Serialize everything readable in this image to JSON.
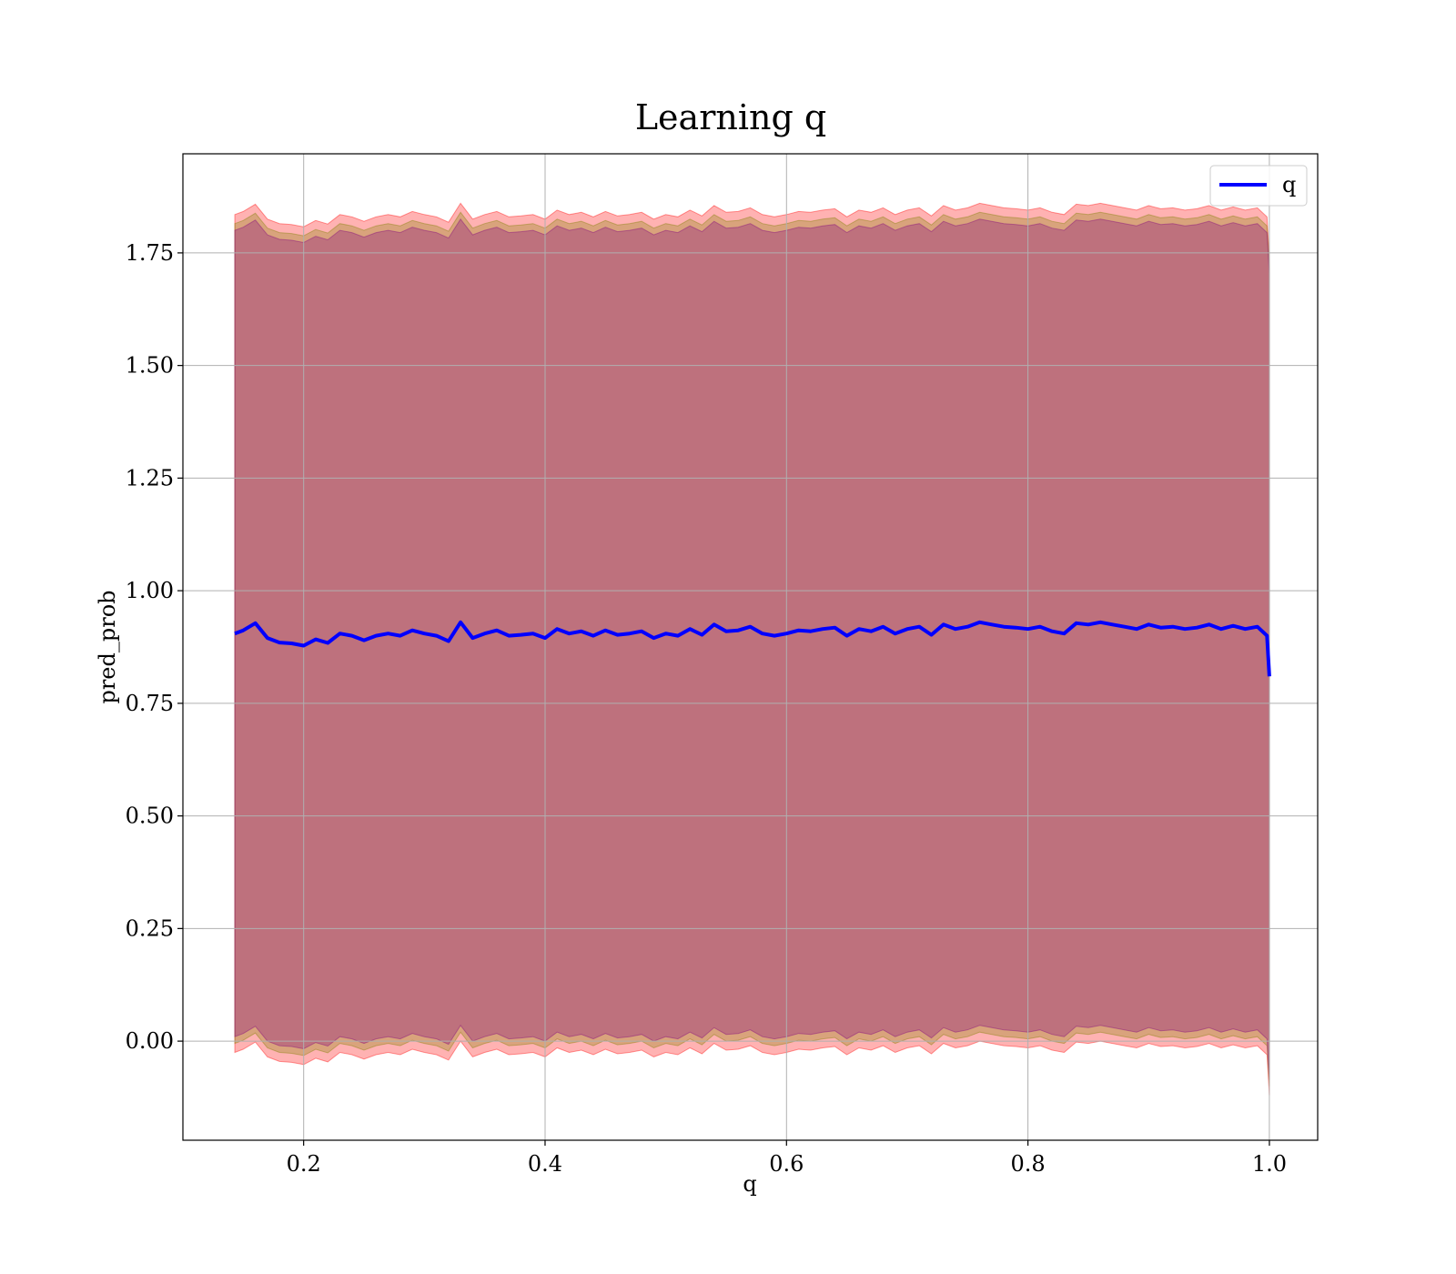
{
  "chart_data": {
    "type": "line",
    "title": "Learning q",
    "xlabel": "q",
    "ylabel": "pred_prob",
    "xlim": [
      0.1,
      1.04
    ],
    "ylim": [
      -0.22,
      1.97
    ],
    "xticks": [
      0.2,
      0.4,
      0.6,
      0.8,
      1.0
    ],
    "xtick_labels": [
      "0.2",
      "0.4",
      "0.6",
      "0.8",
      "1.0"
    ],
    "yticks": [
      0.0,
      0.25,
      0.5,
      0.75,
      1.0,
      1.25,
      1.5,
      1.75
    ],
    "ytick_labels": [
      "0.00",
      "0.25",
      "0.50",
      "0.75",
      "1.00",
      "1.25",
      "1.50",
      "1.75"
    ],
    "grid": true,
    "legend": {
      "placement": "top-right",
      "entries": [
        "q"
      ]
    },
    "series": [
      {
        "name": "q",
        "color": "#0000ff",
        "x": [
          0.143,
          0.15,
          0.16,
          0.17,
          0.18,
          0.19,
          0.2,
          0.21,
          0.22,
          0.23,
          0.24,
          0.25,
          0.26,
          0.27,
          0.28,
          0.29,
          0.3,
          0.31,
          0.32,
          0.33,
          0.34,
          0.35,
          0.36,
          0.37,
          0.38,
          0.39,
          0.4,
          0.41,
          0.42,
          0.43,
          0.44,
          0.45,
          0.46,
          0.47,
          0.48,
          0.49,
          0.5,
          0.51,
          0.52,
          0.53,
          0.54,
          0.55,
          0.56,
          0.57,
          0.58,
          0.59,
          0.6,
          0.61,
          0.62,
          0.63,
          0.64,
          0.65,
          0.66,
          0.67,
          0.68,
          0.69,
          0.7,
          0.71,
          0.72,
          0.73,
          0.74,
          0.75,
          0.76,
          0.77,
          0.78,
          0.79,
          0.8,
          0.81,
          0.82,
          0.83,
          0.84,
          0.85,
          0.86,
          0.87,
          0.88,
          0.89,
          0.9,
          0.91,
          0.92,
          0.93,
          0.94,
          0.95,
          0.96,
          0.97,
          0.98,
          0.99,
          0.998,
          1.0
        ],
        "y": [
          0.905,
          0.912,
          0.928,
          0.895,
          0.885,
          0.883,
          0.878,
          0.892,
          0.884,
          0.905,
          0.9,
          0.89,
          0.9,
          0.905,
          0.9,
          0.912,
          0.905,
          0.9,
          0.888,
          0.93,
          0.895,
          0.905,
          0.912,
          0.9,
          0.902,
          0.905,
          0.895,
          0.915,
          0.905,
          0.91,
          0.9,
          0.912,
          0.902,
          0.905,
          0.91,
          0.895,
          0.905,
          0.9,
          0.915,
          0.902,
          0.925,
          0.91,
          0.912,
          0.92,
          0.905,
          0.9,
          0.905,
          0.912,
          0.91,
          0.915,
          0.918,
          0.9,
          0.915,
          0.91,
          0.92,
          0.905,
          0.915,
          0.92,
          0.902,
          0.925,
          0.915,
          0.92,
          0.93,
          0.925,
          0.92,
          0.918,
          0.915,
          0.92,
          0.91,
          0.905,
          0.928,
          0.925,
          0.93,
          0.925,
          0.92,
          0.915,
          0.925,
          0.918,
          0.92,
          0.915,
          0.918,
          0.925,
          0.915,
          0.922,
          0.915,
          0.92,
          0.9,
          0.81
        ]
      }
    ],
    "bands": [
      {
        "color": "#ff0000",
        "opacity": 0.3,
        "width": 0.93
      },
      {
        "color": "#808000",
        "opacity": 0.3,
        "width": 0.91
      },
      {
        "color": "#800080",
        "opacity": 0.3,
        "width": 0.895
      }
    ]
  }
}
